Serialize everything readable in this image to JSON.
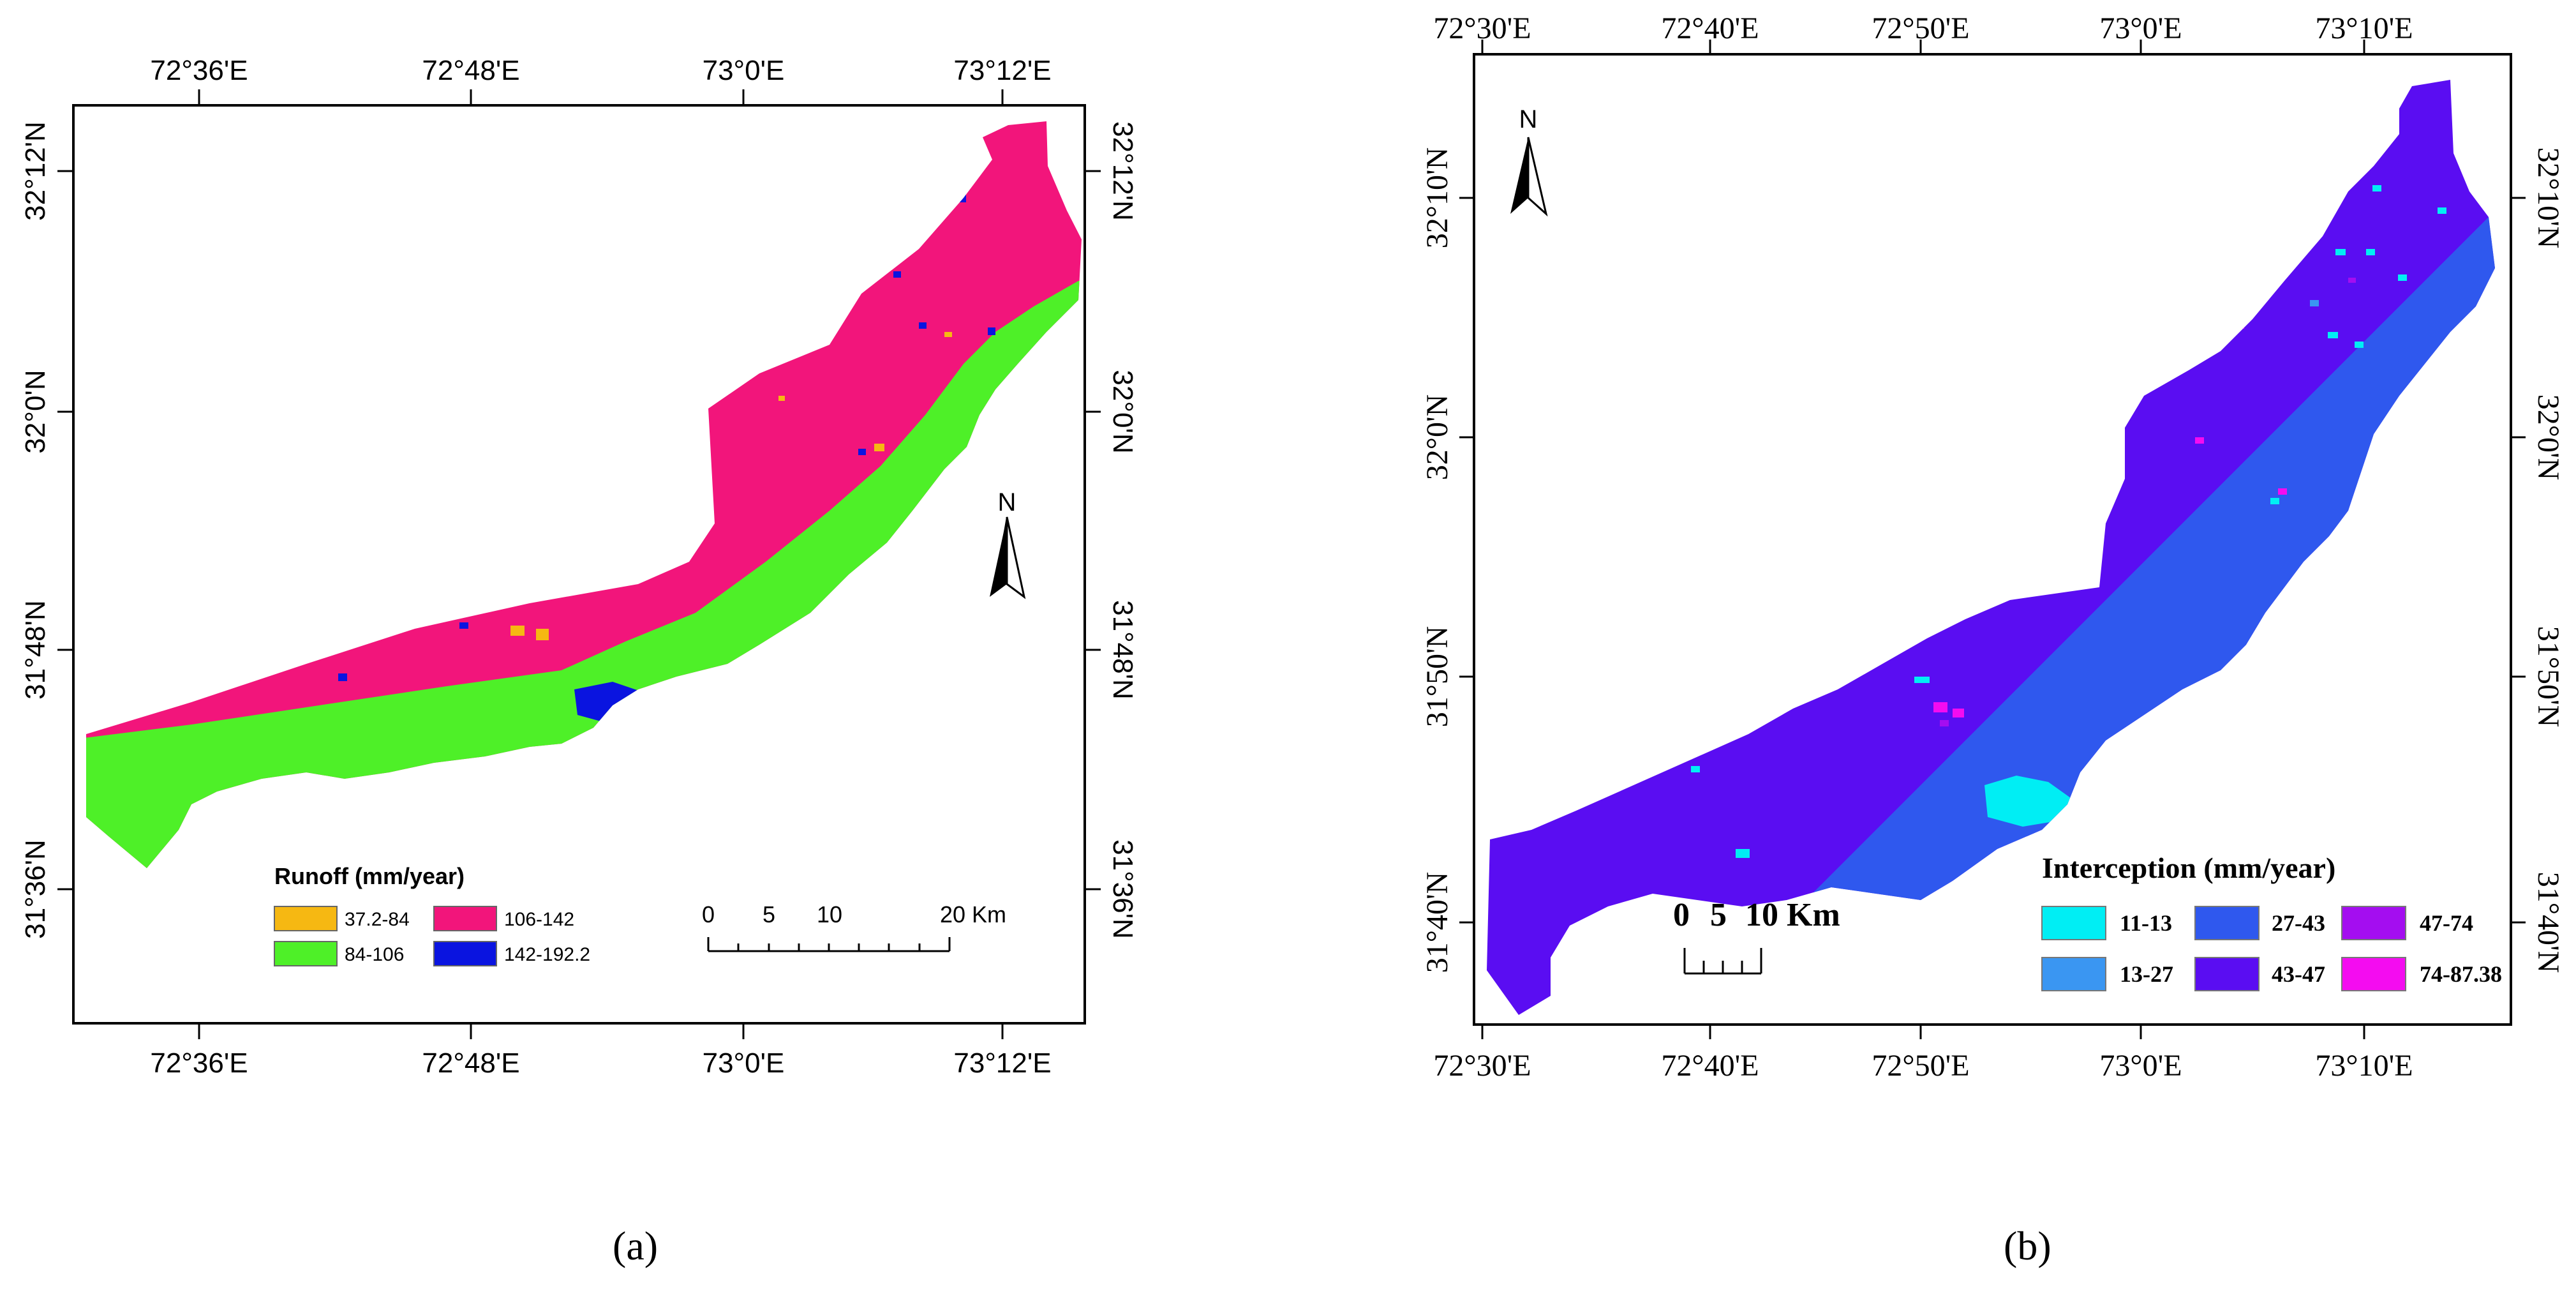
{
  "panel_a": {
    "top_ticks": [
      "72°36'E",
      "72°48'E",
      "73°0'E",
      "73°12'E"
    ],
    "bottom_ticks": [
      "72°36'E",
      "72°48'E",
      "73°0'E",
      "73°12'E"
    ],
    "left_ticks": [
      "32°12'N",
      "32°0'N",
      "31°48'N",
      "31°36'N"
    ],
    "right_ticks": [
      "32°12'N",
      "32°0'N",
      "31°48'N",
      "31°36'N"
    ],
    "north_label": "N",
    "legend_title": "Runoff (mm/year)",
    "legend_items": [
      {
        "label": "37.2-84",
        "color": "#f6b812"
      },
      {
        "label": "106-142",
        "color": "#f2157b"
      },
      {
        "label": "84-106",
        "color": "#4ef028"
      },
      {
        "label": "142-192.2",
        "color": "#0a14e0"
      }
    ],
    "scale_labels": [
      "0",
      "5",
      "10",
      "20 Km"
    ],
    "caption": "(a)"
  },
  "panel_b": {
    "top_ticks": [
      "72°30'E",
      "72°40'E",
      "72°50'E",
      "73°0'E",
      "73°10'E"
    ],
    "bottom_ticks": [
      "72°30'E",
      "72°40'E",
      "72°50'E",
      "73°0'E",
      "73°10'E"
    ],
    "left_ticks": [
      "32°10'N",
      "32°0'N",
      "31°50'N",
      "31°40'N"
    ],
    "right_ticks": [
      "32°10'N",
      "32°0'N",
      "31°50'N",
      "31°40'N"
    ],
    "north_label": "N",
    "legend_title": "Interception (mm/year)",
    "legend_items": [
      {
        "label": "11-13",
        "color": "#00eef4"
      },
      {
        "label": "27-43",
        "color": "#2f58ee"
      },
      {
        "label": "47-74",
        "color": "#a40df0"
      },
      {
        "label": "13-27",
        "color": "#3a96f2"
      },
      {
        "label": "43-47",
        "color": "#5a0df2"
      },
      {
        "label": "74-87.38",
        "color": "#f40cf0"
      }
    ],
    "scale_labels": [
      "0",
      "5",
      "10 Km"
    ],
    "caption": "(b)"
  }
}
